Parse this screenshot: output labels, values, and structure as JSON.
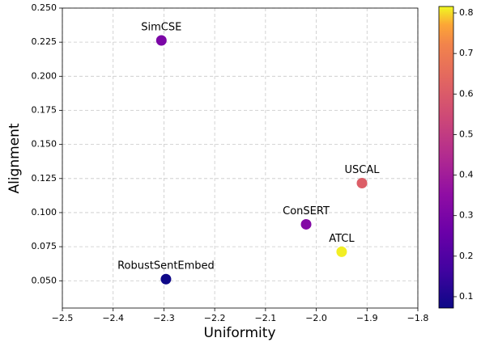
{
  "chart_data": {
    "type": "scatter",
    "xlabel": "Uniformity",
    "ylabel": "Alignment",
    "labels": [
      "SimCSE",
      "USCAL",
      "ConSERT",
      "ATCL",
      "RobustSentEmbed"
    ],
    "x": [
      -2.305,
      -1.91,
      -2.02,
      -1.95,
      -2.296
    ],
    "y": [
      0.2263,
      0.1216,
      0.0914,
      0.0713,
      0.0512
    ],
    "c": [
      0.3,
      0.61,
      0.32,
      0.81,
      0.075
    ],
    "colormap": "plasma",
    "xlim": [
      -2.5,
      -1.8
    ],
    "xticks": [
      {
        "value": -2.5,
        "label": "−2.5"
      },
      {
        "value": -2.4,
        "label": "−2.4"
      },
      {
        "value": -2.3,
        "label": "−2.3"
      },
      {
        "value": -2.2,
        "label": "−2.2"
      },
      {
        "value": -2.1,
        "label": "−2.1"
      },
      {
        "value": -2.0,
        "label": "−2.0"
      },
      {
        "value": -1.9,
        "label": "−1.9"
      },
      {
        "value": -1.8,
        "label": "−1.8"
      }
    ],
    "ylim": [
      0.03,
      0.25
    ],
    "yticks": [
      {
        "value": 0.05,
        "label": "0.050"
      },
      {
        "value": 0.075,
        "label": "0.075"
      },
      {
        "value": 0.1,
        "label": "0.100"
      },
      {
        "value": 0.125,
        "label": "0.125"
      },
      {
        "value": 0.15,
        "label": "0.150"
      },
      {
        "value": 0.175,
        "label": "0.175"
      },
      {
        "value": 0.2,
        "label": "0.200"
      },
      {
        "value": 0.225,
        "label": "0.225"
      },
      {
        "value": 0.25,
        "label": "0.250"
      }
    ],
    "clim": [
      0.072,
      0.816
    ],
    "cticks": [
      0.1,
      0.2,
      0.3,
      0.4,
      0.5,
      0.6,
      0.7,
      0.8
    ],
    "grid": true
  }
}
